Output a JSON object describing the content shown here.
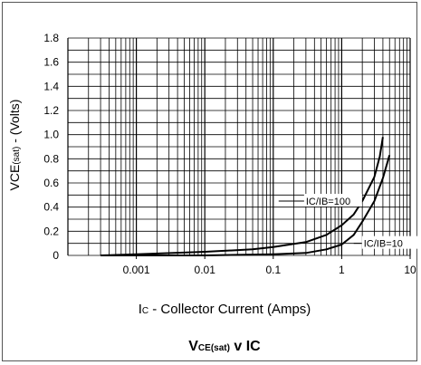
{
  "chart_data": {
    "type": "line",
    "title": "VCE(sat) v IC",
    "xlabel": "IC - Collector Current (Amps)",
    "ylabel": "VCE(sat) - (Volts)",
    "x_scale": "log",
    "xlim": [
      0.0001,
      10
    ],
    "ylim": [
      0,
      1.8
    ],
    "x_ticks": [
      "0.001",
      "0.01",
      "0.1",
      "1",
      "10"
    ],
    "y_ticks": [
      "0",
      "0.2",
      "0.4",
      "0.6",
      "0.8",
      "1.0",
      "1.2",
      "1.4",
      "1.6",
      "1.8"
    ],
    "grid": true,
    "series": [
      {
        "name": "IC/IB=100",
        "x": [
          0.0003,
          0.001,
          0.01,
          0.05,
          0.1,
          0.3,
          0.6,
          1.0,
          1.5,
          2.0,
          3.0,
          3.6,
          4.0
        ],
        "y": [
          0.0,
          0.01,
          0.03,
          0.05,
          0.07,
          0.11,
          0.17,
          0.25,
          0.34,
          0.45,
          0.65,
          0.82,
          0.98
        ]
      },
      {
        "name": "IC/IB=10",
        "x": [
          0.0003,
          0.001,
          0.01,
          0.1,
          0.3,
          0.6,
          1.0,
          1.5,
          2.0,
          3.0,
          4.0,
          5.0
        ],
        "y": [
          0.0,
          0.0,
          0.0,
          0.01,
          0.02,
          0.05,
          0.09,
          0.17,
          0.28,
          0.45,
          0.64,
          0.83
        ]
      }
    ],
    "annotations": [
      {
        "text": "IC/IB=100",
        "main": "IC/IB=100"
      },
      {
        "text": "IC/IB=10",
        "main": "IC/IB=10"
      }
    ]
  },
  "labels": {
    "ylabel_main": "VCE",
    "ylabel_sub": "(sat)",
    "ylabel_rest": " - (Volts)",
    "xlabel_main": "I",
    "xlabel_sub": "C",
    "xlabel_rest": " - Collector Current (Amps)",
    "title_a": "V",
    "title_b": "CE(sat)",
    "title_c": " v I",
    "title_d": "C"
  },
  "colors": {
    "line": "#000000",
    "grid": "#000000"
  }
}
